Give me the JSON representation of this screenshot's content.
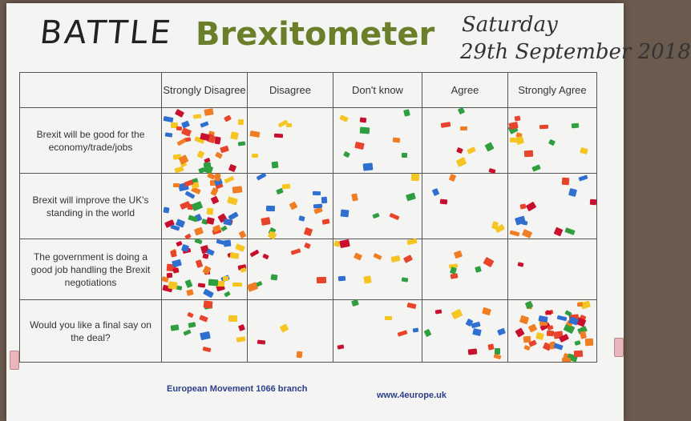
{
  "header": {
    "hand_title": "BATTLE",
    "brand_title": "Brexitometer",
    "date_day": "Saturday",
    "date_full": "29th September 2018"
  },
  "columns": [
    "Strongly Disagree",
    "Disagree",
    "Don't know",
    "Agree",
    "Strongly Agree"
  ],
  "rows": [
    "Brexit will be good for the economy/trade/jobs",
    "Brexit will improve the UK's standing in the world",
    "The government is doing a good job handling the Brexit negotiations",
    "Would you like a final say on the deal?"
  ],
  "footer": {
    "branch": "European Movement 1066 branch",
    "website": "www.4europe.uk"
  },
  "sticker_colors": [
    "#e8432b",
    "#f07d22",
    "#f5c623",
    "#2e9e3e",
    "#2f6fd0",
    "#c8102e"
  ]
}
